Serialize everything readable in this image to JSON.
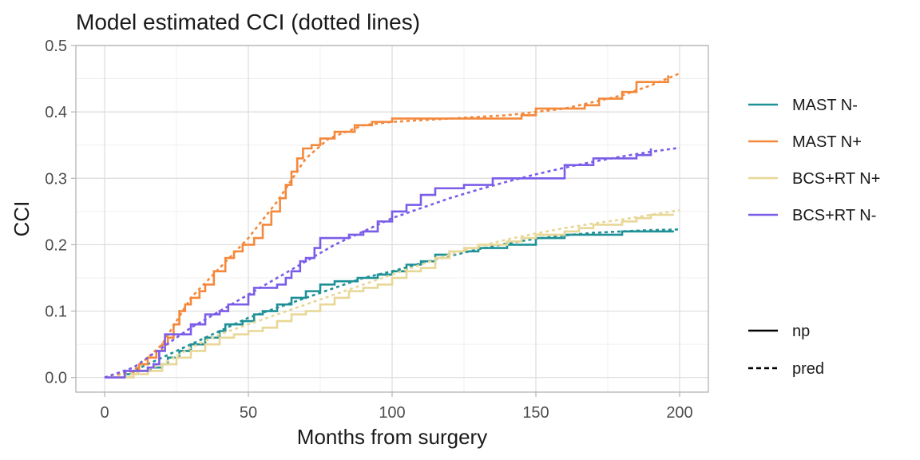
{
  "chart_data": {
    "type": "line",
    "title": "Model estimated CCI (dotted lines)",
    "xlabel": "Months from surgery",
    "ylabel": "CCI",
    "xlim": [
      -10,
      210
    ],
    "ylim": [
      -0.022,
      0.5
    ],
    "x_ticks": [
      0,
      50,
      100,
      150,
      200
    ],
    "x_tick_labels": [
      "0",
      "50",
      "100",
      "150",
      "200"
    ],
    "y_ticks": [
      0.0,
      0.1,
      0.2,
      0.3,
      0.4,
      0.5
    ],
    "y_tick_labels": [
      "0.0",
      "0.1",
      "0.2",
      "0.3",
      "0.4",
      "0.5"
    ],
    "grid": true,
    "legend_position": "right",
    "series": [
      {
        "name": "MAST N-",
        "color": "#1f9196",
        "np": [
          [
            0,
            0
          ],
          [
            7,
            0.005
          ],
          [
            10,
            0.01
          ],
          [
            16,
            0.015
          ],
          [
            20,
            0.02
          ],
          [
            22,
            0.03
          ],
          [
            26,
            0.04
          ],
          [
            30,
            0.05
          ],
          [
            35,
            0.06
          ],
          [
            40,
            0.07
          ],
          [
            42,
            0.08
          ],
          [
            48,
            0.085
          ],
          [
            52,
            0.095
          ],
          [
            55,
            0.1
          ],
          [
            60,
            0.11
          ],
          [
            65,
            0.12
          ],
          [
            70,
            0.13
          ],
          [
            75,
            0.14
          ],
          [
            80,
            0.145
          ],
          [
            88,
            0.15
          ],
          [
            95,
            0.155
          ],
          [
            100,
            0.16
          ],
          [
            105,
            0.17
          ],
          [
            110,
            0.175
          ],
          [
            115,
            0.185
          ],
          [
            120,
            0.19
          ],
          [
            130,
            0.195
          ],
          [
            140,
            0.2
          ],
          [
            150,
            0.21
          ],
          [
            160,
            0.215
          ],
          [
            170,
            0.215
          ],
          [
            180,
            0.22
          ],
          [
            198,
            0.22
          ]
        ],
        "pred": [
          [
            0,
            0
          ],
          [
            10,
            0.01
          ],
          [
            20,
            0.03
          ],
          [
            30,
            0.05
          ],
          [
            40,
            0.07
          ],
          [
            50,
            0.09
          ],
          [
            60,
            0.105
          ],
          [
            70,
            0.12
          ],
          [
            80,
            0.135
          ],
          [
            90,
            0.15
          ],
          [
            100,
            0.16
          ],
          [
            110,
            0.172
          ],
          [
            120,
            0.183
          ],
          [
            130,
            0.193
          ],
          [
            140,
            0.202
          ],
          [
            150,
            0.209
          ],
          [
            160,
            0.214
          ],
          [
            170,
            0.218
          ],
          [
            180,
            0.22
          ],
          [
            190,
            0.222
          ],
          [
            200,
            0.223
          ]
        ]
      },
      {
        "name": "MAST N+",
        "color": "#f4883b",
        "np": [
          [
            0,
            0
          ],
          [
            10,
            0.01
          ],
          [
            12,
            0.02
          ],
          [
            15,
            0.03
          ],
          [
            18,
            0.04
          ],
          [
            20,
            0.05
          ],
          [
            22,
            0.06
          ],
          [
            24,
            0.08
          ],
          [
            26,
            0.1
          ],
          [
            28,
            0.11
          ],
          [
            30,
            0.12
          ],
          [
            33,
            0.13
          ],
          [
            35,
            0.14
          ],
          [
            38,
            0.16
          ],
          [
            42,
            0.18
          ],
          [
            45,
            0.19
          ],
          [
            48,
            0.2
          ],
          [
            52,
            0.21
          ],
          [
            55,
            0.23
          ],
          [
            58,
            0.25
          ],
          [
            61,
            0.27
          ],
          [
            63,
            0.29
          ],
          [
            65,
            0.31
          ],
          [
            67,
            0.33
          ],
          [
            69,
            0.345
          ],
          [
            72,
            0.35
          ],
          [
            75,
            0.36
          ],
          [
            80,
            0.37
          ],
          [
            87,
            0.38
          ],
          [
            93,
            0.385
          ],
          [
            100,
            0.39
          ],
          [
            145,
            0.395
          ],
          [
            150,
            0.405
          ],
          [
            167,
            0.41
          ],
          [
            172,
            0.42
          ],
          [
            180,
            0.43
          ],
          [
            185,
            0.445
          ],
          [
            190,
            0.445
          ],
          [
            196,
            0.455
          ]
        ],
        "pred": [
          [
            0,
            0
          ],
          [
            10,
            0.01
          ],
          [
            20,
            0.05
          ],
          [
            30,
            0.12
          ],
          [
            40,
            0.165
          ],
          [
            50,
            0.21
          ],
          [
            60,
            0.265
          ],
          [
            70,
            0.33
          ],
          [
            78,
            0.36
          ],
          [
            90,
            0.38
          ],
          [
            100,
            0.385
          ],
          [
            120,
            0.39
          ],
          [
            140,
            0.395
          ],
          [
            160,
            0.405
          ],
          [
            180,
            0.425
          ],
          [
            190,
            0.44
          ],
          [
            200,
            0.458
          ]
        ]
      },
      {
        "name": "BCS+RT N+",
        "color": "#e8d796",
        "np": [
          [
            0,
            0
          ],
          [
            10,
            0.005
          ],
          [
            15,
            0.01
          ],
          [
            20,
            0.02
          ],
          [
            25,
            0.03
          ],
          [
            30,
            0.04
          ],
          [
            35,
            0.05
          ],
          [
            40,
            0.06
          ],
          [
            45,
            0.065
          ],
          [
            50,
            0.07
          ],
          [
            55,
            0.075
          ],
          [
            60,
            0.085
          ],
          [
            65,
            0.095
          ],
          [
            70,
            0.1
          ],
          [
            75,
            0.11
          ],
          [
            80,
            0.12
          ],
          [
            85,
            0.13
          ],
          [
            90,
            0.135
          ],
          [
            95,
            0.14
          ],
          [
            100,
            0.15
          ],
          [
            105,
            0.16
          ],
          [
            110,
            0.165
          ],
          [
            115,
            0.18
          ],
          [
            120,
            0.19
          ],
          [
            125,
            0.195
          ],
          [
            130,
            0.2
          ],
          [
            140,
            0.205
          ],
          [
            145,
            0.21
          ],
          [
            150,
            0.215
          ],
          [
            160,
            0.22
          ],
          [
            165,
            0.225
          ],
          [
            170,
            0.23
          ],
          [
            180,
            0.235
          ],
          [
            185,
            0.24
          ],
          [
            190,
            0.245
          ],
          [
            198,
            0.245
          ]
        ],
        "pred": [
          [
            0,
            0
          ],
          [
            10,
            0.005
          ],
          [
            20,
            0.02
          ],
          [
            30,
            0.045
          ],
          [
            40,
            0.065
          ],
          [
            50,
            0.08
          ],
          [
            60,
            0.095
          ],
          [
            70,
            0.11
          ],
          [
            80,
            0.125
          ],
          [
            90,
            0.14
          ],
          [
            100,
            0.155
          ],
          [
            110,
            0.17
          ],
          [
            120,
            0.185
          ],
          [
            130,
            0.197
          ],
          [
            140,
            0.208
          ],
          [
            150,
            0.217
          ],
          [
            160,
            0.225
          ],
          [
            170,
            0.232
          ],
          [
            180,
            0.238
          ],
          [
            190,
            0.245
          ],
          [
            200,
            0.252
          ]
        ]
      },
      {
        "name": "BCS+RT N-",
        "color": "#7b5de8",
        "np": [
          [
            0,
            0
          ],
          [
            7,
            0.01
          ],
          [
            15,
            0.015
          ],
          [
            17,
            0.02
          ],
          [
            19,
            0.04
          ],
          [
            21,
            0.065
          ],
          [
            30,
            0.08
          ],
          [
            35,
            0.095
          ],
          [
            40,
            0.1
          ],
          [
            43,
            0.11
          ],
          [
            50,
            0.125
          ],
          [
            52,
            0.135
          ],
          [
            60,
            0.14
          ],
          [
            63,
            0.15
          ],
          [
            65,
            0.16
          ],
          [
            68,
            0.175
          ],
          [
            70,
            0.18
          ],
          [
            73,
            0.195
          ],
          [
            75,
            0.21
          ],
          [
            85,
            0.215
          ],
          [
            90,
            0.22
          ],
          [
            95,
            0.235
          ],
          [
            100,
            0.25
          ],
          [
            105,
            0.26
          ],
          [
            110,
            0.275
          ],
          [
            115,
            0.285
          ],
          [
            125,
            0.29
          ],
          [
            135,
            0.3
          ],
          [
            160,
            0.32
          ],
          [
            170,
            0.33
          ],
          [
            185,
            0.335
          ],
          [
            190,
            0.345
          ]
        ],
        "pred": [
          [
            0,
            0
          ],
          [
            10,
            0.015
          ],
          [
            20,
            0.045
          ],
          [
            30,
            0.075
          ],
          [
            40,
            0.1
          ],
          [
            50,
            0.125
          ],
          [
            60,
            0.15
          ],
          [
            70,
            0.175
          ],
          [
            80,
            0.2
          ],
          [
            90,
            0.22
          ],
          [
            100,
            0.24
          ],
          [
            110,
            0.255
          ],
          [
            120,
            0.27
          ],
          [
            130,
            0.283
          ],
          [
            140,
            0.295
          ],
          [
            150,
            0.306
          ],
          [
            160,
            0.316
          ],
          [
            170,
            0.325
          ],
          [
            180,
            0.333
          ],
          [
            190,
            0.34
          ],
          [
            200,
            0.346
          ]
        ]
      }
    ],
    "linetype_legend": [
      {
        "label": "np",
        "style": "solid"
      },
      {
        "label": "pred",
        "style": "dashed"
      }
    ]
  }
}
